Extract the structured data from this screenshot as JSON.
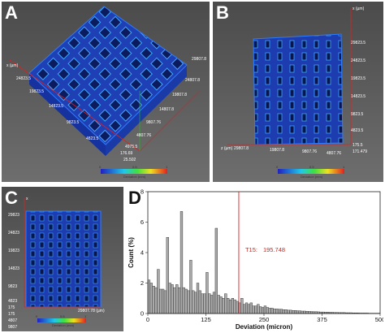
{
  "panels": {
    "a": {
      "label": "A",
      "ticks": [
        "x (µm)",
        "24823.5",
        "19823.5",
        "14823.5",
        "9823.5",
        "4823.5",
        "29807.8",
        "24807.8",
        "19807.8",
        "14807.8",
        "9807.76",
        "4807.76",
        "4975.5",
        "176.69",
        "25.502"
      ],
      "colorbar": {
        "min": "0",
        "mid": "0.5",
        "max": "1",
        "title": "Deviation (mm)"
      }
    },
    "b": {
      "label": "B",
      "ticks": [
        "x (µm)",
        "29823.5",
        "24823.5",
        "19823.5",
        "14823.5",
        "9823.5",
        "4823.5",
        "z (µm)",
        "29807.8",
        "19807.8",
        "9807.76",
        "4807.76",
        "175.5",
        "171.479"
      ],
      "colorbar": {
        "min": "0",
        "mid": "0.5",
        "max": "1",
        "title": "Deviation (mm)"
      }
    },
    "c": {
      "label": "C",
      "ticks": [
        "x",
        "29823",
        "24823",
        "19823",
        "14823",
        "9823",
        "4823",
        "175",
        "175",
        "4807",
        "9807",
        "29807.78 (µm)"
      ],
      "colorbar": {
        "min": "0",
        "mid": "0.5",
        "max": "1",
        "title": "Deviation (mm)"
      }
    },
    "d": {
      "label": "D"
    }
  },
  "chart_data": {
    "type": "bar",
    "xlabel": "Deviation (micron)",
    "ylabel": "Count (%)",
    "xlim": [
      0,
      500
    ],
    "ylim": [
      0,
      8
    ],
    "xticks": [
      "0",
      "125",
      "250",
      "375",
      "500"
    ],
    "yticks": [
      "0",
      "2",
      "4",
      "6",
      "8"
    ],
    "bin_width": 5,
    "x": [
      2.5,
      7.5,
      12.5,
      17.5,
      22.5,
      27.5,
      32.5,
      37.5,
      42.5,
      47.5,
      52.5,
      57.5,
      62.5,
      67.5,
      72.5,
      77.5,
      82.5,
      87.5,
      92.5,
      97.5,
      102.5,
      107.5,
      112.5,
      117.5,
      122.5,
      127.5,
      132.5,
      137.5,
      142.5,
      147.5,
      152.5,
      157.5,
      162.5,
      167.5,
      172.5,
      177.5,
      182.5,
      187.5,
      192.5,
      197.5,
      202.5,
      207.5,
      212.5,
      217.5,
      222.5,
      227.5,
      232.5,
      237.5,
      242.5,
      247.5,
      252.5,
      257.5,
      262.5,
      267.5,
      272.5,
      277.5,
      282.5,
      287.5,
      292.5,
      297.5,
      302.5,
      307.5,
      312.5,
      317.5,
      322.5,
      327.5,
      332.5,
      337.5,
      342.5,
      347.5,
      352.5,
      357.5,
      362.5,
      367.5,
      372.5,
      377.5,
      382.5,
      387.5,
      392.5,
      397.5,
      402.5,
      407.5,
      412.5,
      417.5,
      422.5,
      427.5,
      432.5,
      437.5,
      442.5,
      447.5,
      452.5,
      457.5,
      462.5,
      467.5,
      472.5,
      477.5,
      482.5,
      487.5,
      492.5,
      497.5
    ],
    "values": [
      2.2,
      2.0,
      1.8,
      1.7,
      2.9,
      1.6,
      1.6,
      1.5,
      5.0,
      2.0,
      1.9,
      1.7,
      1.9,
      1.7,
      6.7,
      1.7,
      1.6,
      1.5,
      3.5,
      1.5,
      1.4,
      2.0,
      1.5,
      1.3,
      1.3,
      2.7,
      1.3,
      1.2,
      1.4,
      5.6,
      1.2,
      1.1,
      1.0,
      1.3,
      1.0,
      0.9,
      1.0,
      0.9,
      0.8,
      0.7,
      1.0,
      0.6,
      0.7,
      0.6,
      0.7,
      0.5,
      0.5,
      0.6,
      0.45,
      0.4,
      0.5,
      0.4,
      0.35,
      0.35,
      0.3,
      0.3,
      0.28,
      0.28,
      0.25,
      0.25,
      0.22,
      0.22,
      0.2,
      0.2,
      0.18,
      0.18,
      0.16,
      0.16,
      0.15,
      0.14,
      0.13,
      0.12,
      0.12,
      0.11,
      0.1,
      0.1,
      0.09,
      0.09,
      0.08,
      0.08,
      0.07,
      0.07,
      0.06,
      0.06,
      0.06,
      0.05,
      0.05,
      0.05,
      0.04,
      0.04,
      0.04,
      0.03,
      0.03,
      0.03,
      0.03,
      0.02,
      0.02,
      0.02,
      0.02,
      0.02
    ],
    "threshold": {
      "label": "T15:",
      "value": 195.748,
      "value_text": "195.748",
      "color": "#e0201a"
    },
    "bar_fill": "#aaaaaa",
    "bar_stroke": "#222222"
  }
}
